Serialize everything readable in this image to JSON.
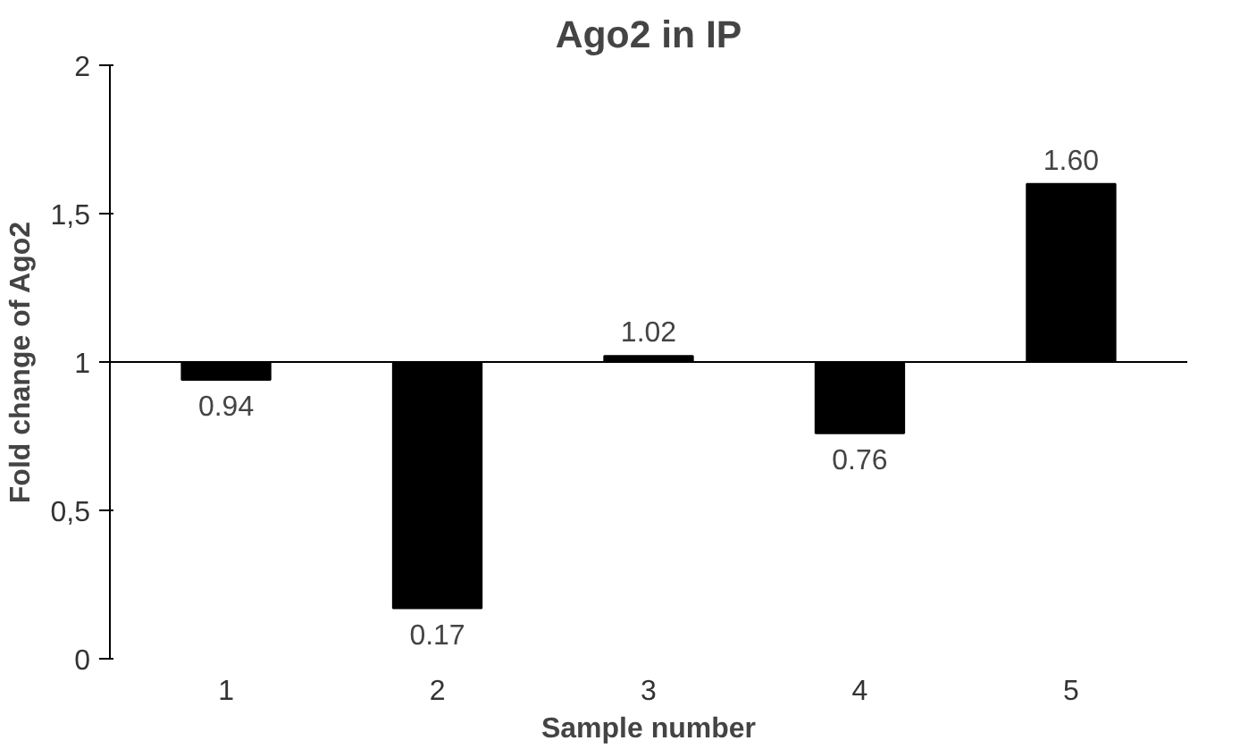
{
  "chart_data": {
    "type": "bar",
    "title": "Ago2 in IP",
    "xlabel": "Sample number",
    "ylabel": "Fold change of Ago2",
    "categories": [
      "1",
      "2",
      "3",
      "4",
      "5"
    ],
    "base": [
      1,
      1,
      1,
      1,
      1
    ],
    "values": [
      -0.06,
      -0.83,
      0.02,
      -0.24,
      0.6
    ],
    "value_labels": [
      "0.94",
      "0.17",
      "1.02",
      "0.76",
      "1.60"
    ],
    "color": "#000000",
    "ylim": [
      0,
      2
    ],
    "yticks": [
      0,
      {
        "value": 0.5,
        "label": "0,5"
      },
      1,
      {
        "value": 1.5,
        "label": "1,5"
      },
      2
    ],
    "ref_lines": [
      {
        "axis": "y",
        "value": 1,
        "color": "#000000"
      }
    ]
  }
}
